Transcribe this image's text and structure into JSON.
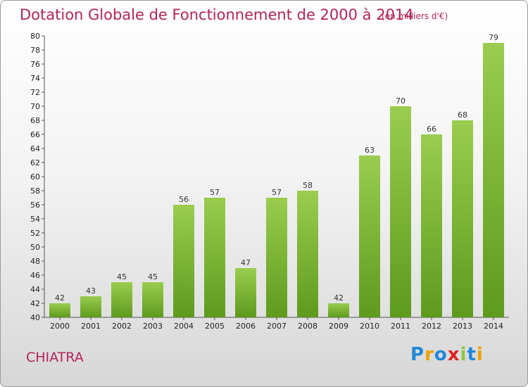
{
  "title": "Dotation Globale de Fonctionnement de 2000 à 2014",
  "subtitle": "(en milliers d'€)",
  "commune": "CHIATRA",
  "logo": "Proxiti",
  "colors": {
    "accent": "#b4235a",
    "bar_light": "#9acd4f",
    "bar_dark": "#5e9a1c"
  },
  "chart_data": {
    "type": "bar",
    "title": "Dotation Globale de Fonctionnement de 2000 à 2014",
    "subtitle": "(en milliers d'€)",
    "categories": [
      "2000",
      "2001",
      "2002",
      "2003",
      "2004",
      "2005",
      "2006",
      "2007",
      "2008",
      "2009",
      "2010",
      "2011",
      "2012",
      "2013",
      "2014"
    ],
    "values": [
      42,
      43,
      45,
      45,
      56,
      57,
      47,
      57,
      58,
      42,
      63,
      70,
      66,
      68,
      79
    ],
    "ylim": [
      40,
      80
    ],
    "yticks": [
      40,
      42,
      44,
      46,
      48,
      50,
      52,
      54,
      56,
      58,
      60,
      62,
      64,
      66,
      68,
      70,
      72,
      74,
      76,
      78,
      80
    ],
    "xlabel": "",
    "ylabel": "",
    "grid": false,
    "data_labels": true
  }
}
